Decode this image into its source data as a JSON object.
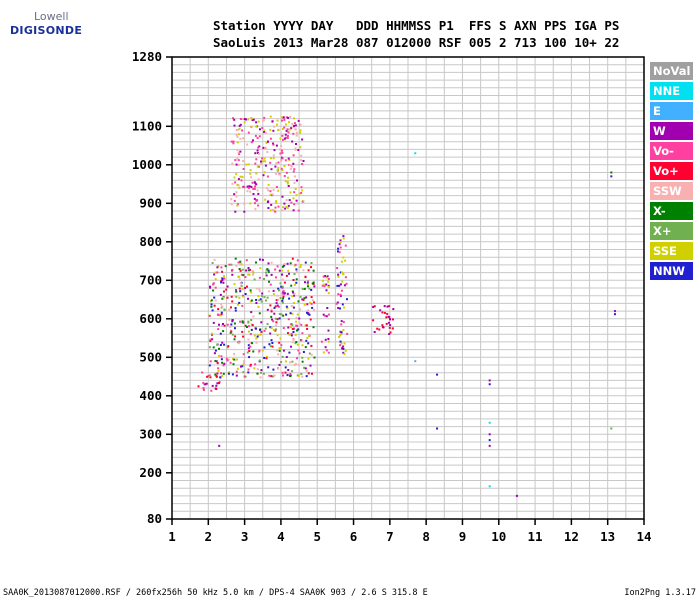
{
  "logo": {
    "line1": "Lowell",
    "line2": "DIGISONDE"
  },
  "header": {
    "line1": "Station YYYY DAY   DDD HHMMSS P1  FFS S AXN PPS IGA PS",
    "line2": "SaoLuis 2013 Mar28 087 012000 RSF 005 2 713 100 10+ 22"
  },
  "legend": [
    {
      "label": "NoVal",
      "color": "#a0a0a0"
    },
    {
      "label": "NNE",
      "color": "#00e0f0"
    },
    {
      "label": "E",
      "color": "#40b0ff"
    },
    {
      "label": "W",
      "color": "#a000b0"
    },
    {
      "label": "Vo-",
      "color": "#ff40a0"
    },
    {
      "label": "Vo+",
      "color": "#ff0030"
    },
    {
      "label": "SSW",
      "color": "#f8b0b0"
    },
    {
      "label": "X-",
      "color": "#008000"
    },
    {
      "label": "X+",
      "color": "#70b050"
    },
    {
      "label": "SSE",
      "color": "#d0d000"
    },
    {
      "label": "NNW",
      "color": "#2020d0"
    }
  ],
  "footer": {
    "left": "SAA0K_2013087012000.RSF / 260fx256h 50 kHz 5.0 km / DPS-4 SAA0K 903 / 2.6 S 315.8 E",
    "right": "Ion2Png 1.3.17"
  },
  "chart_data": {
    "type": "scatter",
    "xlabel": "",
    "ylabel": "",
    "xlim": [
      1,
      14
    ],
    "ylim": [
      80,
      1280
    ],
    "xticks": [
      1,
      2,
      3,
      4,
      5,
      6,
      7,
      8,
      9,
      10,
      11,
      12,
      13,
      14
    ],
    "yticks": [
      80,
      200,
      300,
      400,
      500,
      600,
      700,
      800,
      900,
      1000,
      1100,
      1280
    ],
    "grid": true,
    "clusters": [
      {
        "name": "F-trace low",
        "x_range": [
          1.7,
          2.3
        ],
        "y_range": [
          410,
          470
        ],
        "colors": [
          "#ff0030",
          "#a000b0",
          "#ff40a0"
        ]
      },
      {
        "name": "F-trace main",
        "x_range": [
          2.0,
          4.9
        ],
        "y_range": [
          450,
          760
        ],
        "colors": [
          "#d0d000",
          "#ff40a0",
          "#a000b0",
          "#ff0030",
          "#70b050",
          "#f8b0b0",
          "#008000",
          "#2020d0"
        ]
      },
      {
        "name": "Upper cluster",
        "x_range": [
          2.6,
          4.6
        ],
        "y_range": [
          880,
          1130
        ],
        "colors": [
          "#a000b0",
          "#f8b0b0",
          "#d0d000",
          "#ff40a0"
        ]
      },
      {
        "name": "Column 5.2",
        "x_range": [
          5.1,
          5.3
        ],
        "y_range": [
          490,
          720
        ],
        "colors": [
          "#a000b0",
          "#ff40a0",
          "#d0d000"
        ]
      },
      {
        "name": "Column 5.7",
        "x_range": [
          5.5,
          5.8
        ],
        "y_range": [
          510,
          820
        ],
        "colors": [
          "#a000b0",
          "#ff40a0",
          "#d0d000",
          "#2020d0"
        ]
      },
      {
        "name": "Patch 6.7",
        "x_range": [
          6.5,
          7.1
        ],
        "y_range": [
          560,
          640
        ],
        "colors": [
          "#ff0030",
          "#a000b0"
        ]
      }
    ],
    "isolated_points": [
      {
        "x": 2.3,
        "y": 270,
        "color": "#a000b0"
      },
      {
        "x": 7.7,
        "y": 1030,
        "color": "#00e0f0"
      },
      {
        "x": 7.7,
        "y": 490,
        "color": "#40b0ff"
      },
      {
        "x": 8.3,
        "y": 455,
        "color": "#2020d0"
      },
      {
        "x": 8.3,
        "y": 315,
        "color": "#2020d0"
      },
      {
        "x": 9.75,
        "y": 440,
        "color": "#a000b0"
      },
      {
        "x": 9.75,
        "y": 430,
        "color": "#2020d0"
      },
      {
        "x": 9.75,
        "y": 330,
        "color": "#00e0f0"
      },
      {
        "x": 9.75,
        "y": 300,
        "color": "#a000b0"
      },
      {
        "x": 9.75,
        "y": 285,
        "color": "#2020d0"
      },
      {
        "x": 9.75,
        "y": 270,
        "color": "#a000b0"
      },
      {
        "x": 9.75,
        "y": 165,
        "color": "#00e0f0"
      },
      {
        "x": 10.5,
        "y": 140,
        "color": "#a000b0"
      },
      {
        "x": 13.1,
        "y": 980,
        "color": "#008000"
      },
      {
        "x": 13.1,
        "y": 970,
        "color": "#2020d0"
      },
      {
        "x": 13.2,
        "y": 620,
        "color": "#a000b0"
      },
      {
        "x": 13.2,
        "y": 612,
        "color": "#2020d0"
      },
      {
        "x": 13.1,
        "y": 315,
        "color": "#70b050"
      }
    ]
  }
}
